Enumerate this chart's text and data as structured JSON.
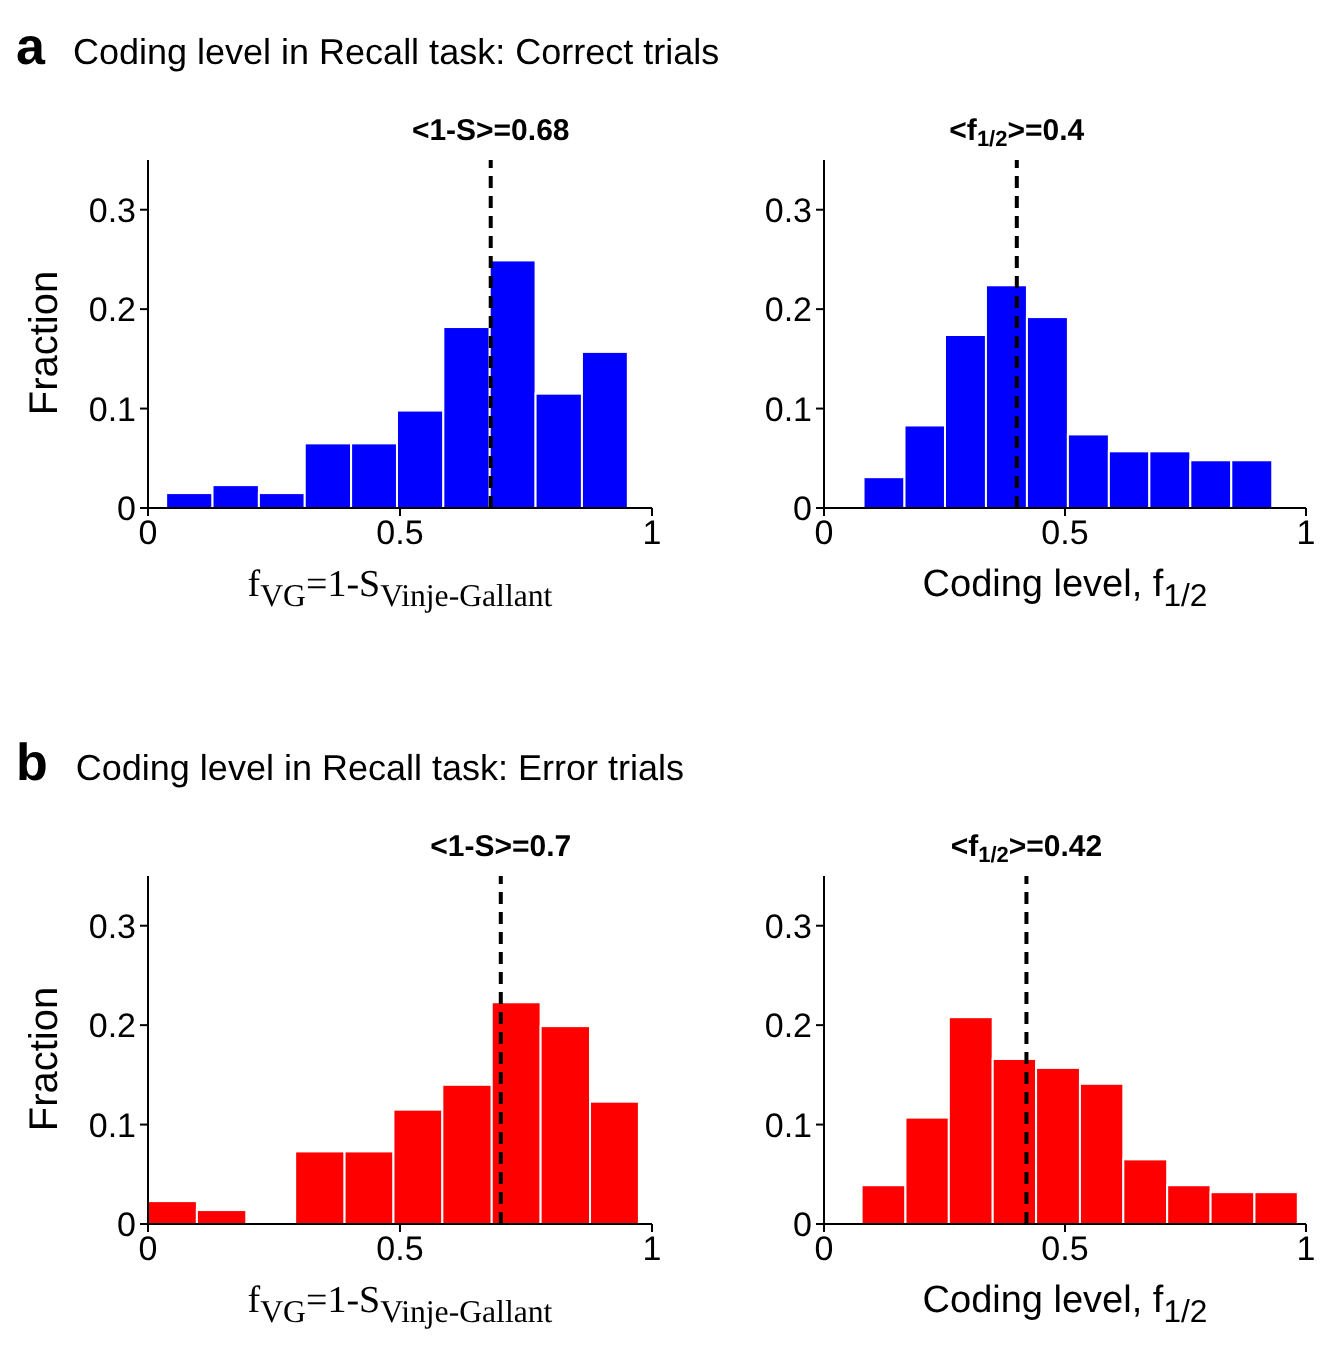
{
  "chart_data": [
    {
      "type": "histogram",
      "title": "Coding level in Recall task: Correct trials",
      "annotations": [
        "a"
      ],
      "xlabel": "f$_{VG}$=1-S$_{Vinje-Gallant}$",
      "ylabel": "Fraction",
      "color": "#0000ff",
      "bins": [
        0.036,
        0.128,
        0.22,
        0.311,
        0.403,
        0.494,
        0.586,
        0.678,
        0.769,
        0.861,
        0.952
      ],
      "values": [
        0.015,
        0.023,
        0.015,
        0.065,
        0.065,
        0.098,
        0.182,
        0.249,
        0.115,
        0.157
      ],
      "xlim": [
        0,
        1
      ],
      "xticks": [
        0,
        0.5,
        1
      ],
      "ylim": [
        0,
        0.35
      ],
      "yticks": [
        0,
        0.1,
        0.2,
        0.3
      ],
      "ref_lines": [
        {
          "axis": "x",
          "value": 0.68,
          "label": "<1-S>=0.68",
          "color": "#000000",
          "line_style": "dashed"
        }
      ]
    },
    {
      "type": "histogram",
      "xlabel": "Coding level, f$_{1/2}$",
      "color": "#0000ff",
      "bins": [
        0.082,
        0.167,
        0.251,
        0.336,
        0.421,
        0.506,
        0.591,
        0.675,
        0.76,
        0.845,
        0.93
      ],
      "values": [
        0.031,
        0.083,
        0.174,
        0.224,
        0.192,
        0.074,
        0.057,
        0.057,
        0.048,
        0.048
      ],
      "xlim": [
        0,
        1
      ],
      "xticks": [
        0,
        0.5,
        1
      ],
      "ylim": [
        0,
        0.35
      ],
      "yticks": [
        0,
        0.1,
        0.2,
        0.3
      ],
      "ref_lines": [
        {
          "axis": "x",
          "value": 0.4,
          "label": "<f$_{1/2}$>=0.4",
          "color": "#000000",
          "line_style": "dashed"
        }
      ]
    },
    {
      "type": "histogram",
      "title": "Coding level in Recall task: Error trials",
      "annotations": [
        "b"
      ],
      "xlabel": "f$_{VG}$=1-S$_{Vinje-Gallant}$",
      "ylabel": "Fraction",
      "color": "#ff0000",
      "bins": [
        0,
        0.097,
        0.195,
        0.292,
        0.39,
        0.487,
        0.584,
        0.682,
        0.779,
        0.877,
        0.974
      ],
      "values": [
        0.023,
        0.014,
        0,
        0.073,
        0.073,
        0.115,
        0.14,
        0.223,
        0.199,
        0.123
      ],
      "xlim": [
        0,
        1
      ],
      "xticks": [
        0,
        0.5,
        1
      ],
      "ylim": [
        0,
        0.35
      ],
      "yticks": [
        0,
        0.1,
        0.2,
        0.3
      ],
      "ref_lines": [
        {
          "axis": "x",
          "value": 0.7,
          "label": "<1-S>=0.7",
          "color": "#000000",
          "line_style": "dashed"
        }
      ]
    },
    {
      "type": "histogram",
      "xlabel": "Coding level, f$_{1/2}$",
      "color": "#ff0000",
      "bins": [
        0.078,
        0.169,
        0.259,
        0.35,
        0.44,
        0.531,
        0.621,
        0.712,
        0.802,
        0.893,
        0.983
      ],
      "values": [
        0.039,
        0.107,
        0.208,
        0.166,
        0.157,
        0.141,
        0.065,
        0.039,
        0.032,
        0.032
      ],
      "xlim": [
        0,
        1
      ],
      "xticks": [
        0,
        0.5,
        1
      ],
      "ylim": [
        0,
        0.35
      ],
      "yticks": [
        0,
        0.1,
        0.2,
        0.3
      ],
      "ref_lines": [
        {
          "axis": "x",
          "value": 0.42,
          "label": "<f$_{1/2}$>=0.42",
          "color": "#000000",
          "line_style": "dashed"
        }
      ]
    }
  ]
}
